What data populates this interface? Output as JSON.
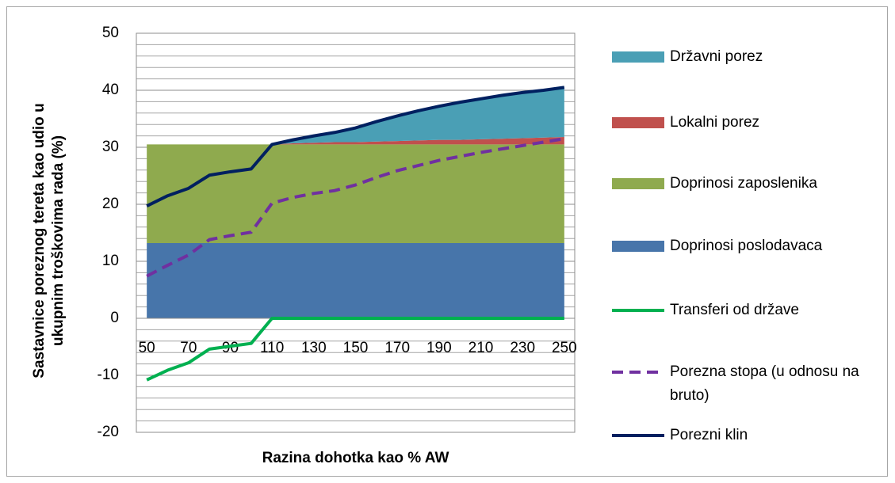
{
  "chart_data": {
    "type": "stacked_area_line",
    "x_label": "Razina dohotka kao % AW",
    "y_label": "Sastavnice poreznog tereta kao udio u ukupnim troškovima rada (%)",
    "categories": [
      "50",
      null,
      "70",
      null,
      "90",
      null,
      "110",
      null,
      "130",
      null,
      "150",
      null,
      "170",
      null,
      "190",
      null,
      "210",
      null,
      "230",
      null,
      "250"
    ],
    "ylim": [
      -20,
      50
    ],
    "yticks": [
      -20,
      -10,
      0,
      10,
      20,
      30,
      40,
      50
    ],
    "minor_yticks": [
      -18,
      -16,
      -14,
      -12,
      -8,
      -6,
      -4,
      -2,
      2,
      4,
      6,
      8,
      12,
      14,
      16,
      18,
      22,
      24,
      26,
      28,
      32,
      34,
      36,
      38,
      42,
      44,
      46,
      48
    ],
    "grid": true,
    "legend": "right",
    "series": [
      {
        "name": "Državni porez",
        "kind": "area",
        "color": "#4a9fb5",
        "values": [
          0,
          0,
          0,
          0,
          0,
          0,
          0,
          0.6,
          1.2,
          1.7,
          2.5,
          3.5,
          4.4,
          5.2,
          5.9,
          6.6,
          7.1,
          7.6,
          8.0,
          8.3,
          8.7
        ]
      },
      {
        "name": "Lokalni porez",
        "kind": "area",
        "color": "#c0504d",
        "values": [
          0,
          0,
          0,
          0,
          0,
          0,
          0,
          0.2,
          0.3,
          0.4,
          0.4,
          0.5,
          0.6,
          0.7,
          0.8,
          0.8,
          0.9,
          1.0,
          1.1,
          1.2,
          1.3
        ]
      },
      {
        "name": "Doprinosi zaposlenika",
        "kind": "area",
        "color": "#8faa4e",
        "values": [
          17.3,
          17.3,
          17.3,
          17.3,
          17.3,
          17.3,
          17.3,
          17.3,
          17.3,
          17.3,
          17.3,
          17.3,
          17.3,
          17.3,
          17.3,
          17.3,
          17.3,
          17.3,
          17.3,
          17.3,
          17.3
        ]
      },
      {
        "name": "Doprinosi poslodavaca",
        "kind": "area",
        "color": "#4775aa",
        "values": [
          13.2,
          13.2,
          13.2,
          13.2,
          13.2,
          13.2,
          13.2,
          13.2,
          13.2,
          13.2,
          13.2,
          13.2,
          13.2,
          13.2,
          13.2,
          13.2,
          13.2,
          13.2,
          13.2,
          13.2,
          13.2
        ]
      },
      {
        "name": "Transferi od države",
        "kind": "line",
        "color": "#00b050",
        "values": [
          -10.8,
          -9.1,
          -7.8,
          -5.4,
          -4.9,
          -4.4,
          0,
          0,
          0,
          0,
          0,
          0,
          0,
          0,
          0,
          0,
          0,
          0,
          0,
          0,
          0
        ]
      },
      {
        "name": "Porezna stopa (u odnosu na bruto)",
        "kind": "line",
        "dashed": true,
        "color": "#7030a0",
        "values": [
          7.4,
          9.3,
          11.1,
          13.8,
          14.5,
          15.1,
          20.2,
          21.2,
          21.9,
          22.4,
          23.4,
          24.7,
          25.9,
          26.8,
          27.7,
          28.4,
          29.1,
          29.7,
          30.3,
          30.9,
          31.5
        ]
      },
      {
        "name": "Porezni klin",
        "kind": "line",
        "color": "#002060",
        "values": [
          19.7,
          21.5,
          22.8,
          25.1,
          25.7,
          26.2,
          30.5,
          31.3,
          32.0,
          32.6,
          33.4,
          34.5,
          35.5,
          36.4,
          37.2,
          37.9,
          38.5,
          39.1,
          39.6,
          40.0,
          40.5
        ]
      }
    ]
  }
}
